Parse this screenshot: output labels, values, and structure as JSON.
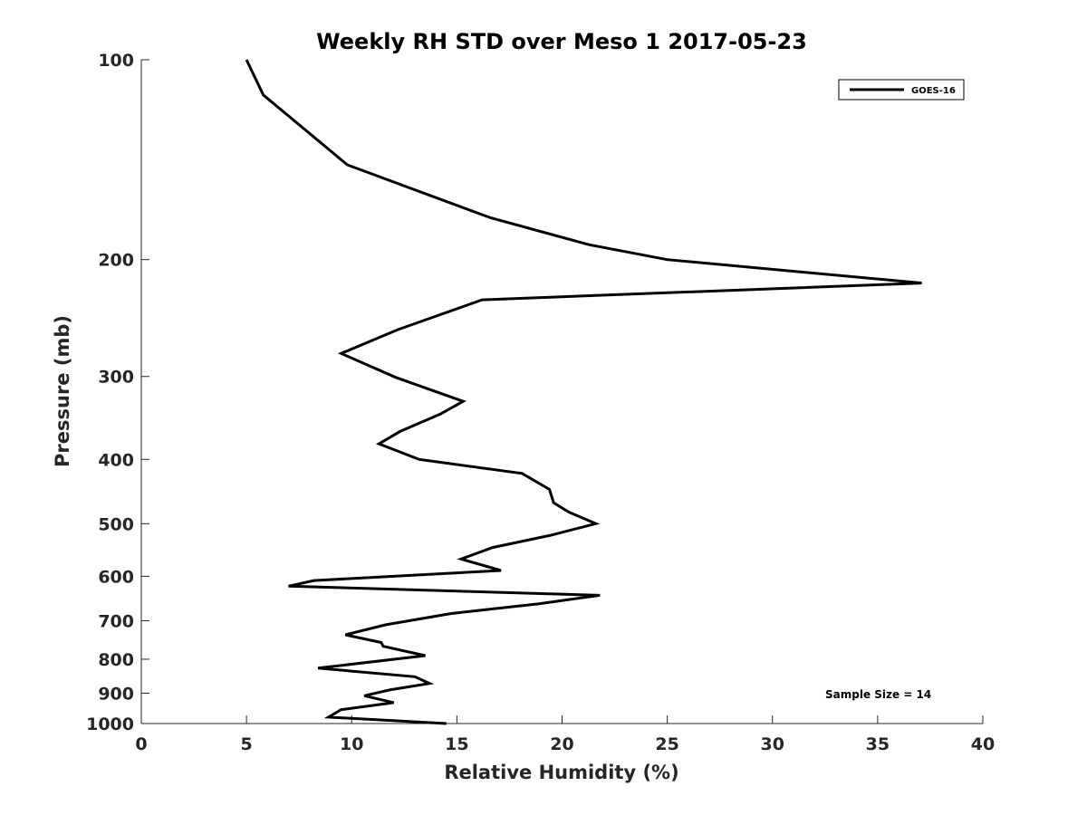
{
  "chart_data": {
    "type": "line",
    "title": "Weekly RH STD over Meso 1 2017-05-23",
    "xlabel": "Relative Humidity (%)",
    "ylabel": "Pressure (mb)",
    "xlim": [
      0,
      40
    ],
    "ylim": [
      100,
      1000
    ],
    "yscale": "log",
    "yreversed": true,
    "xticks": [
      0,
      5,
      10,
      15,
      20,
      25,
      30,
      35,
      40
    ],
    "xtick_labels": [
      "0",
      "5",
      "10",
      "15",
      "20",
      "25",
      "30",
      "35",
      "40"
    ],
    "yticks": [
      100,
      200,
      300,
      400,
      500,
      600,
      700,
      800,
      900,
      1000
    ],
    "ytick_labels": [
      "100",
      "200",
      "300",
      "400",
      "500",
      "600",
      "700",
      "800",
      "900",
      "1000"
    ],
    "grid": false,
    "legend_position": "top-right",
    "series": [
      {
        "name": "GOES-16",
        "color": "#000000",
        "x": [
          5.0,
          5.8,
          9.8,
          16.6,
          21.3,
          25.0,
          37.1,
          16.2,
          12.2,
          9.5,
          12.1,
          15.3,
          14.2,
          12.3,
          11.3,
          13.2,
          18.1,
          19.4,
          19.6,
          20.3,
          21.6,
          19.4,
          16.7,
          15.2,
          17.1,
          8.2,
          7.0,
          21.8,
          18.9,
          14.7,
          11.6,
          9.7,
          11.4,
          11.5,
          13.5,
          8.4,
          13.0,
          13.7,
          11.8,
          10.6,
          12.0,
          9.5,
          8.9,
          14.5
        ],
        "y": [
          100,
          113,
          144,
          173,
          190,
          200,
          217,
          230,
          255,
          277,
          301,
          327,
          342,
          363,
          379,
          400,
          420,
          444,
          465,
          480,
          500,
          521,
          543,
          565,
          588,
          609,
          621,
          641,
          660,
          683,
          710,
          735,
          755,
          765,
          790,
          825,
          850,
          870,
          890,
          908,
          930,
          953,
          978,
          1000
        ]
      }
    ],
    "annotations": [
      {
        "text": "Sample Size = 14",
        "position": "bottom-right"
      }
    ]
  }
}
